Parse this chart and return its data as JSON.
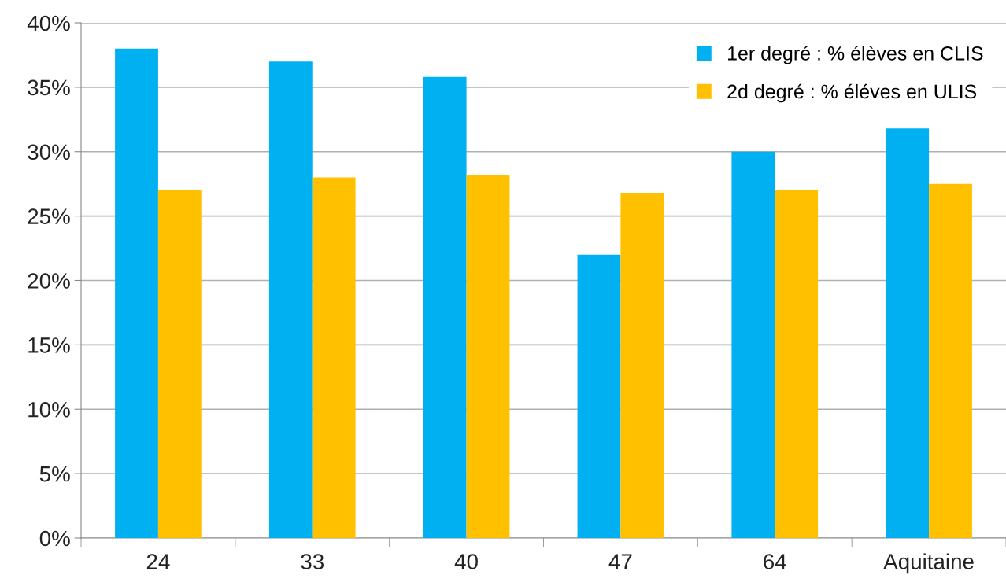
{
  "chart_data": {
    "type": "bar",
    "categories": [
      "24",
      "33",
      "40",
      "47",
      "64",
      "Aquitaine"
    ],
    "series": [
      {
        "name": "1er degré : % élèves en CLIS",
        "color": "#00b0f0",
        "values": [
          38,
          37,
          35.8,
          22,
          30,
          31.8
        ]
      },
      {
        "name": "2d degré : % éléves en ULIS",
        "color": "#ffc000",
        "values": [
          27,
          28,
          28.2,
          26.8,
          27,
          27.5
        ]
      }
    ],
    "ylim": [
      0,
      40
    ],
    "yticks": [
      {
        "value": 0,
        "label": "0%"
      },
      {
        "value": 5,
        "label": "5%"
      },
      {
        "value": 10,
        "label": "10%"
      },
      {
        "value": 15,
        "label": "15%"
      },
      {
        "value": 20,
        "label": "20%"
      },
      {
        "value": 25,
        "label": "25%"
      },
      {
        "value": 30,
        "label": "30%"
      },
      {
        "value": 35,
        "label": "35%"
      },
      {
        "value": 40,
        "label": "40%"
      }
    ],
    "grid": "y",
    "legend": "top right"
  }
}
